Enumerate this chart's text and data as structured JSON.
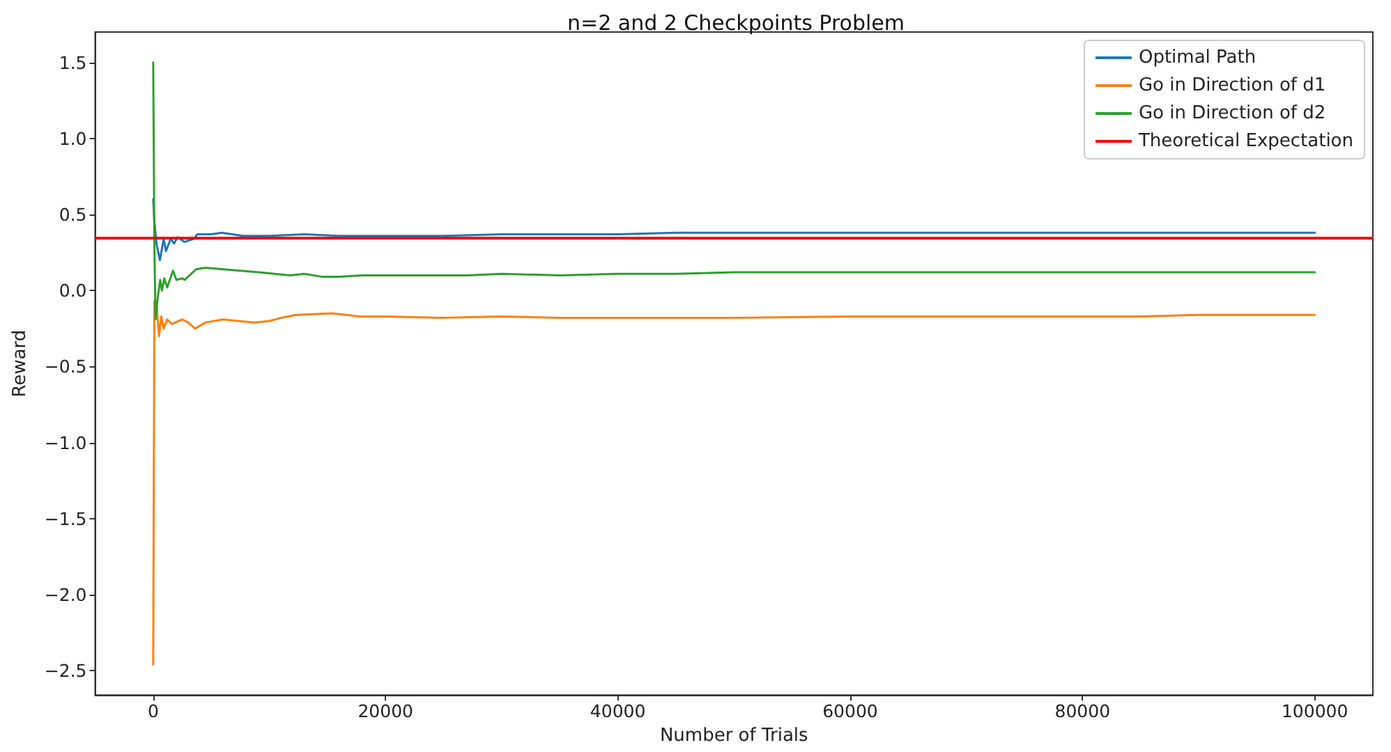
{
  "chart_data": {
    "type": "line",
    "title": "n=2 and 2 Checkpoints Problem",
    "xlabel": "Number of Trials",
    "ylabel": "Reward",
    "series": [
      {
        "name": "Optimal Path",
        "color": "#1f77b4",
        "x": [
          1,
          100,
          300,
          580,
          900,
          1100,
          1500,
          1800,
          2100,
          2700,
          3500,
          3800,
          5000,
          5900,
          7700,
          10000,
          13000,
          16000,
          20000,
          25000,
          30000,
          35000,
          40000,
          45000,
          50000,
          60000,
          70000,
          80000,
          90000,
          100000
        ],
        "values": [
          0.6,
          0.45,
          0.3,
          0.2,
          0.34,
          0.26,
          0.34,
          0.31,
          0.35,
          0.32,
          0.34,
          0.37,
          0.37,
          0.38,
          0.36,
          0.36,
          0.37,
          0.36,
          0.36,
          0.36,
          0.37,
          0.37,
          0.37,
          0.38,
          0.38,
          0.38,
          0.38,
          0.38,
          0.38,
          0.38
        ]
      },
      {
        "name": "Go in Direction of d1",
        "color": "#ff7f0e",
        "x": [
          1,
          100,
          300,
          500,
          700,
          900,
          1200,
          1600,
          2500,
          3000,
          3600,
          4500,
          6000,
          8700,
          10000,
          11000,
          12300,
          15400,
          17700,
          20000,
          24700,
          30000,
          35000,
          40000,
          50000,
          60000,
          70000,
          80000,
          85000,
          90000,
          95000,
          100000
        ],
        "values": [
          -2.46,
          -0.07,
          -0.1,
          -0.3,
          -0.17,
          -0.25,
          -0.19,
          -0.22,
          -0.19,
          -0.21,
          -0.25,
          -0.21,
          -0.19,
          -0.21,
          -0.2,
          -0.18,
          -0.16,
          -0.15,
          -0.17,
          -0.17,
          -0.18,
          -0.17,
          -0.18,
          -0.18,
          -0.18,
          -0.17,
          -0.17,
          -0.17,
          -0.17,
          -0.16,
          -0.16,
          -0.16
        ]
      },
      {
        "name": "Go in Direction of d2",
        "color": "#2ca02c",
        "x": [
          1,
          100,
          200,
          400,
          600,
          750,
          950,
          1200,
          1700,
          2000,
          2500,
          2700,
          3700,
          4500,
          6000,
          9100,
          11800,
          13000,
          14600,
          16000,
          18000,
          22000,
          27000,
          30000,
          35000,
          40000,
          45000,
          50000,
          60000,
          70000,
          80000,
          90000,
          100000
        ],
        "values": [
          1.5,
          0.3,
          -0.19,
          -0.04,
          0.07,
          0.0,
          0.08,
          0.02,
          0.13,
          0.07,
          0.08,
          0.07,
          0.14,
          0.15,
          0.14,
          0.12,
          0.1,
          0.11,
          0.09,
          0.09,
          0.1,
          0.1,
          0.1,
          0.11,
          0.1,
          0.11,
          0.11,
          0.12,
          0.12,
          0.12,
          0.12,
          0.12,
          0.12
        ]
      }
    ],
    "ref_lines": [
      {
        "axis": "y",
        "value": 0.35,
        "label": "Theoretical Expectation",
        "color": "#ff0000"
      }
    ],
    "xlim": [
      -5000,
      105000
    ],
    "xticks": [
      0,
      20000,
      40000,
      60000,
      80000,
      100000
    ],
    "ylim": [
      -2.66,
      1.7
    ],
    "yticks": [
      {
        "value": -2.5,
        "label": "−2.5"
      },
      {
        "value": -2.0,
        "label": "−2.0"
      },
      {
        "value": -1.5,
        "label": "−1.5"
      },
      {
        "value": -1.0,
        "label": "−1.0"
      },
      {
        "value": -0.5,
        "label": "−0.5"
      },
      {
        "value": 0.0,
        "label": "0.0"
      },
      {
        "value": 0.5,
        "label": "0.5"
      },
      {
        "value": 1.0,
        "label": "1.0"
      },
      {
        "value": 1.5,
        "label": "1.5"
      }
    ],
    "legend": "top right"
  }
}
